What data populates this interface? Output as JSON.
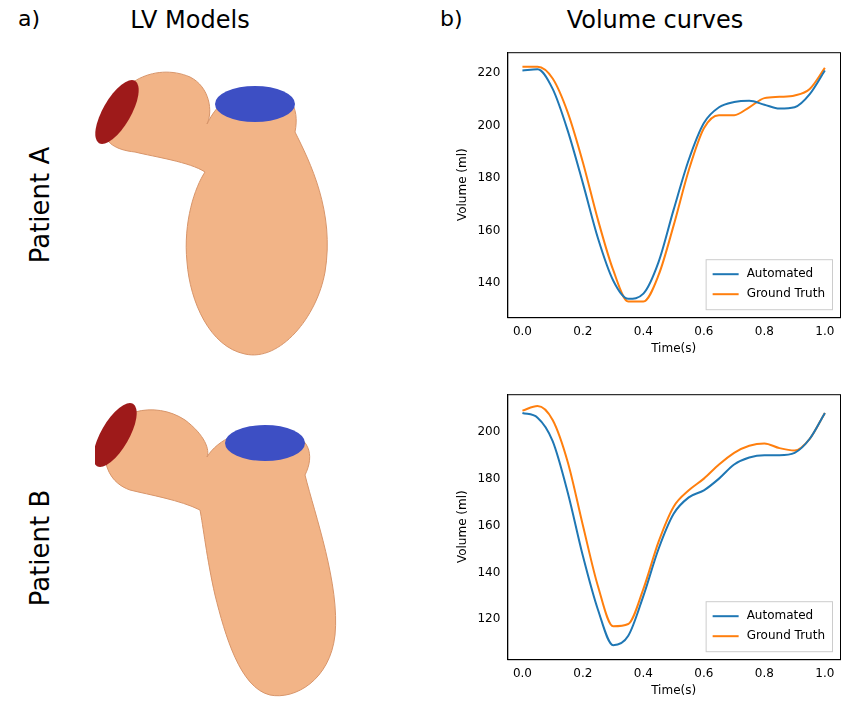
{
  "figure": {
    "panels": [
      {
        "letter": "a)",
        "title": "LV Models"
      },
      {
        "letter": "b)",
        "title": "Volume curves"
      }
    ],
    "rows": [
      "Patient A",
      "Patient B"
    ]
  },
  "chart_data": [
    {
      "type": "line",
      "x_label": "Time(s)",
      "y_label": "Volume (ml)",
      "x": [
        0,
        0.05,
        0.1,
        0.15,
        0.2,
        0.25,
        0.3,
        0.35,
        0.4,
        0.45,
        0.5,
        0.55,
        0.6,
        0.65,
        0.7,
        0.75,
        0.8,
        0.85,
        0.9,
        0.95,
        1.0
      ],
      "series": [
        {
          "name": "Automated",
          "color": "#1f77b4",
          "values": [
            221,
            221.5,
            214,
            198,
            178,
            157,
            141,
            134,
            136,
            148,
            168,
            187,
            201,
            207,
            209,
            209.5,
            208,
            206.5,
            207,
            212,
            221
          ]
        },
        {
          "name": "Ground Truth",
          "color": "#ff7f0e",
          "values": [
            222.5,
            222.5,
            218,
            205,
            186,
            164,
            145,
            133,
            133,
            143,
            162,
            183,
            199,
            204,
            204,
            207,
            210.5,
            211,
            211.5,
            214,
            222
          ]
        }
      ],
      "xlim": [
        -0.05,
        1.05
      ],
      "xticks": [
        {
          "value": 0,
          "label": "0.0"
        },
        0.2,
        0.4,
        0.6,
        0.8,
        {
          "value": 1,
          "label": "1.0"
        }
      ],
      "ylim": [
        127,
        228
      ],
      "yticks": [
        140,
        160,
        180,
        200,
        220
      ],
      "grid": false,
      "legend": "lower right"
    },
    {
      "type": "line",
      "x_label": "Time(s)",
      "y_label": "Volume (ml)",
      "x": [
        0,
        0.05,
        0.1,
        0.15,
        0.2,
        0.25,
        0.3,
        0.35,
        0.4,
        0.45,
        0.5,
        0.55,
        0.6,
        0.65,
        0.7,
        0.75,
        0.8,
        0.85,
        0.9,
        0.95,
        1.0
      ],
      "series": [
        {
          "name": "Automated",
          "color": "#1f77b4",
          "values": [
            208,
            206,
            196,
            174,
            147,
            124,
            109,
            113,
            130,
            150,
            165,
            172,
            175,
            180,
            186,
            189,
            190,
            190,
            191,
            197,
            208
          ]
        },
        {
          "name": "Ground Truth",
          "color": "#ff7f0e",
          "values": [
            209,
            211,
            205,
            187,
            160,
            134,
            117,
            118,
            133,
            153,
            168,
            175,
            180,
            186,
            191,
            194,
            195,
            193,
            192,
            197,
            208
          ]
        }
      ],
      "xlim": [
        -0.05,
        1.05
      ],
      "xticks": [
        {
          "value": 0,
          "label": "0.0"
        },
        0.2,
        0.4,
        0.6,
        0.8,
        {
          "value": 1,
          "label": "1.0"
        }
      ],
      "ylim": [
        103,
        216
      ],
      "yticks": [
        120,
        140,
        160,
        180,
        200
      ],
      "grid": false,
      "legend": "lower right"
    }
  ]
}
